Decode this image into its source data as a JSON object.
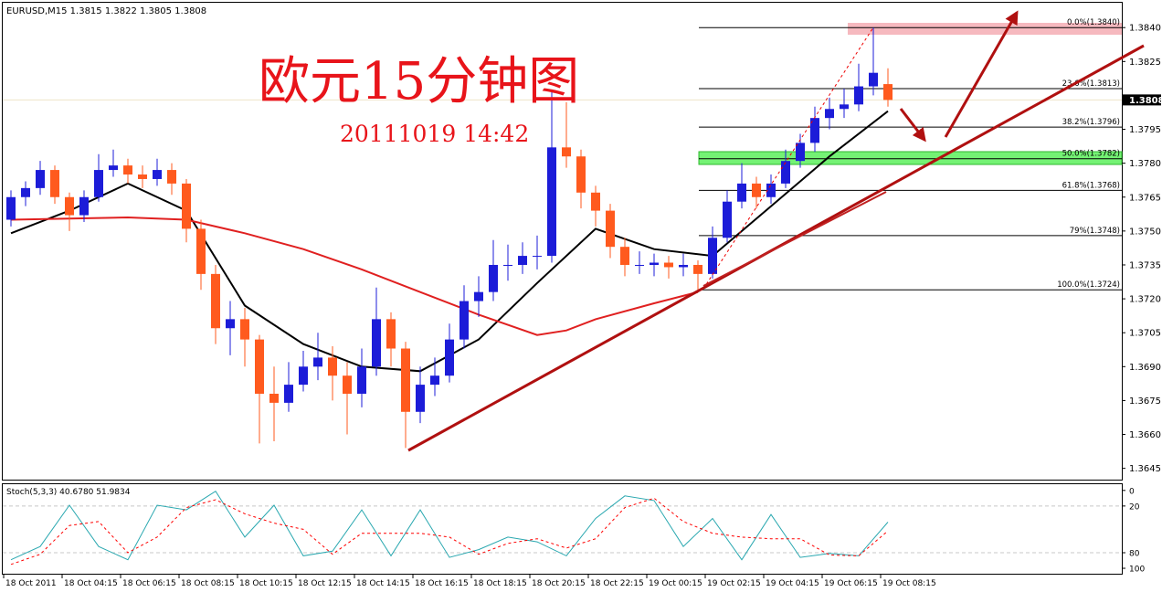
{
  "chart_data": [
    {
      "type": "candlestick",
      "title": "欧元15分钟图",
      "subtitle": "20111019 14:42",
      "symbol_info": "EURUSD,M15  1.3815 1.3822 1.3805 1.3808",
      "up_color": "#1c1cd8",
      "down_color": "#ff5a1e",
      "xlim": [
        2.21875,
        40.5
      ],
      "ylim": [
        1.3851,
        1.364
      ],
      "yticks": [
        {
          "value": 1.384,
          "label": "1.3840"
        },
        1.3825,
        1.3795,
        {
          "value": 1.378,
          "label": "1.3780"
        },
        1.3765,
        {
          "value": 1.375,
          "label": "1.3750"
        },
        1.3735,
        {
          "value": 1.372,
          "label": "1.3720"
        },
        1.3705,
        {
          "value": 1.369,
          "label": "1.3690"
        },
        1.3675,
        {
          "value": 1.366,
          "label": "1.3660"
        },
        1.3645
      ],
      "last_price": 1.3808,
      "x": [
        2.5,
        3,
        3.5,
        4,
        4.5,
        5,
        5.5,
        6,
        6.5,
        7,
        7.5,
        8,
        8.5,
        9,
        9.5,
        10,
        10.5,
        11,
        11.5,
        12,
        12.5,
        13,
        13.5,
        14,
        14.5,
        15,
        15.5,
        16,
        16.5,
        17,
        17.5,
        18,
        18.5,
        19,
        19.5,
        20,
        20.5,
        21,
        21.5,
        22,
        22.5,
        23,
        23.5,
        24,
        24.5,
        25,
        25.5,
        26,
        26.5,
        27,
        27.5,
        28,
        28.5,
        29,
        29.5,
        30,
        30.5,
        31,
        31.5,
        32,
        32.5
      ],
      "open": [
        1.3755,
        1.3765,
        1.3769,
        1.3777,
        1.3765,
        1.3757,
        1.3765,
        1.3777,
        1.3779,
        1.3775,
        1.3773,
        1.3777,
        1.3771,
        1.3751,
        1.3731,
        1.3707,
        1.3711,
        1.3702,
        1.3678,
        1.3674,
        1.3682,
        1.369,
        1.3694,
        1.3686,
        1.3678,
        1.369,
        1.3711,
        1.3698,
        1.367,
        1.3682,
        1.3686,
        1.3702,
        1.3719,
        1.3723,
        1.3735,
        1.3735,
        1.3739,
        1.3739,
        1.3787,
        1.3783,
        1.3767,
        1.3759,
        1.3743,
        1.3735,
        1.3735,
        1.3736,
        1.3734,
        1.3735,
        1.3731,
        1.3747,
        1.3763,
        1.3771,
        1.3765,
        1.3771,
        1.3781,
        1.3789,
        1.38,
        1.3804,
        1.3806,
        1.3814,
        1.3815
      ],
      "high": [
        1.3768,
        1.3772,
        1.3781,
        1.3779,
        1.3767,
        1.3768,
        1.3784,
        1.3786,
        1.3782,
        1.3779,
        1.3782,
        1.378,
        1.3773,
        1.3755,
        1.3735,
        1.3719,
        1.3716,
        1.3704,
        1.369,
        1.3692,
        1.3697,
        1.3705,
        1.3699,
        1.3692,
        1.3698,
        1.3725,
        1.3714,
        1.3701,
        1.369,
        1.3694,
        1.3709,
        1.3726,
        1.373,
        1.3746,
        1.3744,
        1.3745,
        1.3748,
        1.3812,
        1.3807,
        1.3786,
        1.377,
        1.3762,
        1.3747,
        1.3741,
        1.374,
        1.3739,
        1.374,
        1.3737,
        1.3752,
        1.3768,
        1.378,
        1.3774,
        1.3775,
        1.3786,
        1.3793,
        1.3805,
        1.3809,
        1.3813,
        1.3824,
        1.384,
        1.3822
      ],
      "low": [
        1.3752,
        1.3761,
        1.3766,
        1.3762,
        1.375,
        1.3754,
        1.3763,
        1.3774,
        1.3771,
        1.3769,
        1.377,
        1.3766,
        1.3745,
        1.3724,
        1.37,
        1.3695,
        1.369,
        1.3656,
        1.3657,
        1.367,
        1.3679,
        1.3684,
        1.3675,
        1.366,
        1.3672,
        1.3686,
        1.369,
        1.3654,
        1.3665,
        1.3677,
        1.3683,
        1.3698,
        1.3712,
        1.3719,
        1.3728,
        1.3731,
        1.3733,
        1.3736,
        1.3778,
        1.376,
        1.3752,
        1.3738,
        1.373,
        1.3731,
        1.373,
        1.3729,
        1.373,
        1.3724,
        1.3729,
        1.3745,
        1.376,
        1.376,
        1.3762,
        1.3769,
        1.3778,
        1.3785,
        1.3795,
        1.38,
        1.3803,
        1.381,
        1.3805
      ],
      "close": [
        1.3765,
        1.3769,
        1.3777,
        1.3765,
        1.3757,
        1.3765,
        1.3777,
        1.3779,
        1.3775,
        1.3773,
        1.3777,
        1.3771,
        1.3751,
        1.3731,
        1.3707,
        1.3711,
        1.3702,
        1.3678,
        1.3674,
        1.3682,
        1.369,
        1.3694,
        1.3686,
        1.3678,
        1.369,
        1.3711,
        1.3698,
        1.367,
        1.3682,
        1.3686,
        1.3702,
        1.3719,
        1.3723,
        1.3735,
        1.3735,
        1.3739,
        1.3739,
        1.3787,
        1.3783,
        1.3767,
        1.3759,
        1.3743,
        1.3735,
        1.3735,
        1.3736,
        1.3734,
        1.3735,
        1.3731,
        1.3747,
        1.3763,
        1.3771,
        1.3765,
        1.3771,
        1.3781,
        1.3789,
        1.38,
        1.3804,
        1.3806,
        1.3814,
        1.382,
        1.3808
      ],
      "series": [
        {
          "color": "#000000",
          "x": [
            2.5,
            4.5,
            6.5,
            8.5,
            10.5,
            12.5,
            14.5,
            16.5,
            18.5,
            20.5,
            22.5,
            24.5,
            26.5,
            28.5,
            30.5,
            32.5
          ],
          "values": [
            1.3749,
            1.3759,
            1.3771,
            1.3759,
            1.3717,
            1.37,
            1.369,
            1.3688,
            1.3702,
            1.3727,
            1.3751,
            1.3742,
            1.3739,
            1.3761,
            1.3783,
            1.3803
          ]
        },
        {
          "color": "#e02020",
          "x": [
            2.5,
            6.5,
            8.5,
            10.5,
            12.5,
            14.5,
            16.5,
            18.5,
            20.5,
            21.5,
            22.5,
            24.5,
            26
          ],
          "values": [
            1.3755,
            1.3756,
            1.3755,
            1.3749,
            1.3742,
            1.3733,
            1.3723,
            1.3713,
            1.3704,
            1.3706,
            1.3711,
            1.3718,
            1.3723
          ]
        }
      ],
      "fibonacci": [
        {
          "label": "0.0%(1.3840)",
          "value": 1.384
        },
        {
          "label": "23.6%(1.3813)",
          "value": 1.3813
        },
        {
          "label": "38.2%(1.3796)",
          "value": 1.3796
        },
        {
          "label": "50.0%(1.3782)",
          "value": 1.3782
        },
        {
          "label": "61.8%(1.3768)",
          "value": 1.3768
        },
        {
          "label": "79%(1.3748)",
          "value": 1.3748
        },
        {
          "label": "100.0%(1.3724)",
          "value": 1.3724
        }
      ]
    },
    {
      "type": "line",
      "title": "Stoch(5,3,3) 40.6780 51.9834",
      "xlim": [
        2.21875,
        40.5
      ],
      "ylim": [
        -8,
        107
      ],
      "yticks": [
        100,
        80,
        20,
        0
      ],
      "levels": [
        80,
        20
      ],
      "xticks": [
        {
          "value": 2.25,
          "label": "18 Oct 2011"
        },
        {
          "value": 4.25,
          "label": "18 Oct 04:15"
        },
        {
          "value": 6.25,
          "label": "18 Oct 06:15"
        },
        {
          "value": 8.25,
          "label": "18 Oct 08:15"
        },
        {
          "value": 10.25,
          "label": "18 Oct 10:15"
        },
        {
          "value": 12.25,
          "label": "18 Oct 12:15"
        },
        {
          "value": 14.25,
          "label": "18 Oct 14:15"
        },
        {
          "value": 16.25,
          "label": "18 Oct 16:15"
        },
        {
          "value": 18.25,
          "label": "18 Oct 18:15"
        },
        {
          "value": 20.25,
          "label": "18 Oct 20:15"
        },
        {
          "value": 22.25,
          "label": "18 Oct 22:15"
        },
        {
          "value": 24.25,
          "label": "19 Oct 00:15"
        },
        {
          "value": 26.25,
          "label": "19 Oct 02:15"
        },
        {
          "value": 28.25,
          "label": "19 Oct 04:15"
        },
        {
          "value": 30.25,
          "label": "19 Oct 06:15"
        },
        {
          "value": 32.25,
          "label": "19 Oct 08:15"
        }
      ],
      "series": [
        {
          "color": "#2aa8b0",
          "dashed": false,
          "x": [
            2.5,
            3.5,
            4.5,
            5.5,
            6.5,
            7.5,
            8.5,
            9.5,
            10.5,
            11.5,
            12.5,
            13.5,
            14.5,
            15.5,
            16.5,
            17.5,
            18.5,
            19.5,
            20.5,
            21.5,
            22.5,
            23.5,
            24.5,
            25.5,
            26.5,
            27.5,
            28.5,
            29.5,
            30.5,
            31.5,
            32.5
          ],
          "values": [
            89,
            72,
            19,
            72,
            89,
            19,
            25,
            1,
            60,
            19,
            84,
            78,
            25,
            84,
            25,
            86,
            76,
            60,
            66,
            84,
            36,
            7,
            13,
            72,
            36,
            89,
            31,
            86,
            81,
            84,
            40.678
          ]
        },
        {
          "color": "#ff0000",
          "dashed": true,
          "x": [
            2.5,
            3.5,
            4.5,
            5.5,
            6.5,
            7.5,
            8.5,
            9.5,
            10.5,
            11.5,
            12.5,
            13.5,
            14.5,
            15.5,
            16.5,
            17.5,
            18.5,
            19.5,
            20.5,
            21.5,
            22.5,
            23.5,
            24.5,
            25.5,
            26.5,
            27.5,
            28.5,
            29.5,
            30.5,
            31.5,
            32.5
          ],
          "values": [
            95,
            82,
            45,
            40,
            80,
            60,
            22,
            12,
            30,
            42,
            50,
            82,
            55,
            55,
            55,
            60,
            82,
            68,
            62,
            74,
            62,
            22,
            10,
            40,
            55,
            60,
            62,
            62,
            83,
            84,
            51.9834
          ]
        }
      ]
    }
  ]
}
